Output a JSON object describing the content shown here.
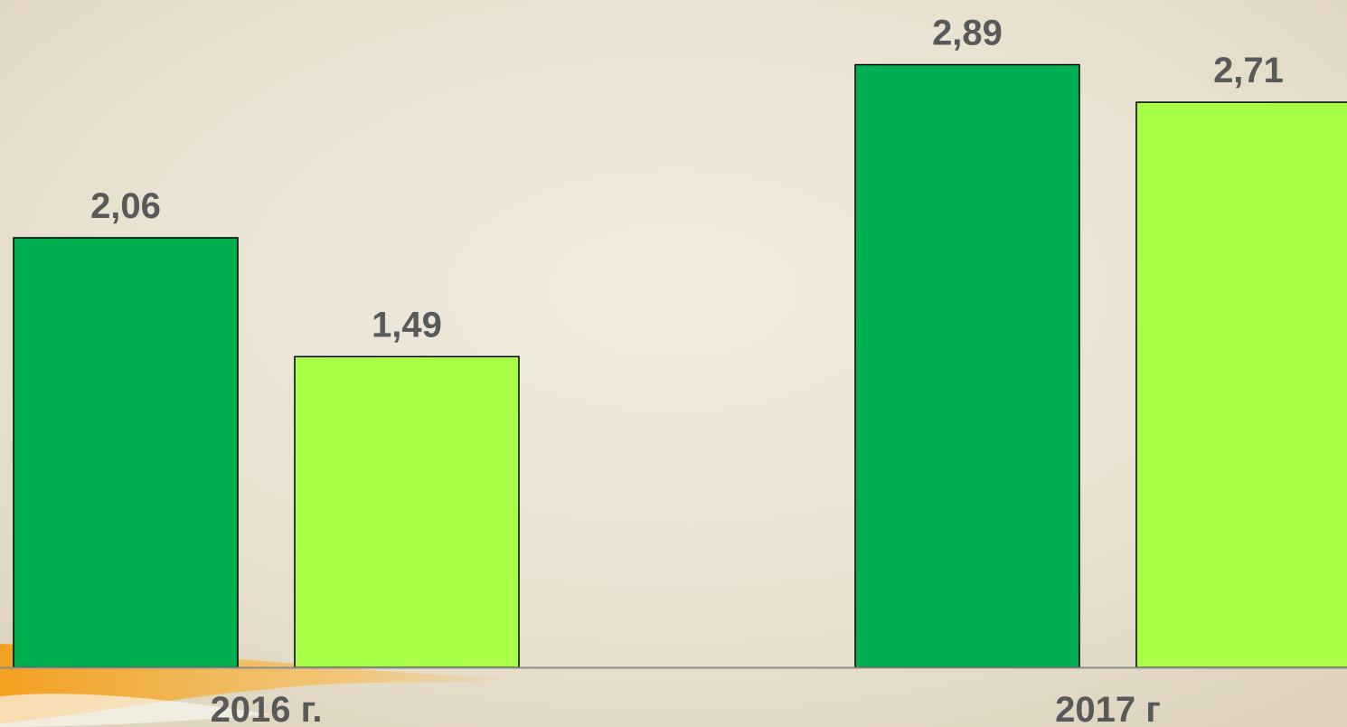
{
  "chart_data": {
    "type": "bar",
    "categories": [
      "2016 г.",
      "2017 г"
    ],
    "series": [
      {
        "color": "#00b050",
        "values": [
          2.06,
          2.89
        ],
        "value_labels": [
          "2,06",
          "2,89"
        ]
      },
      {
        "color": "#a9ff45",
        "values": [
          1.49,
          2.71
        ],
        "value_labels": [
          "1,49",
          "2,71"
        ]
      }
    ]
  }
}
